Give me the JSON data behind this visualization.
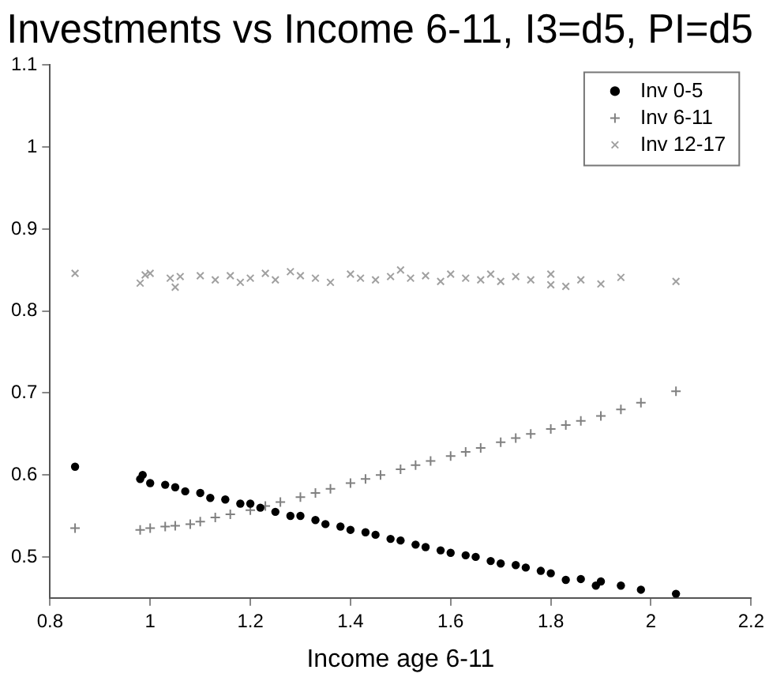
{
  "chart_data": {
    "type": "scatter",
    "title": "Investments vs Income 6-11, I3=d5, PI=d5",
    "xlabel": "Income age 6-11",
    "xlim": [
      0.8,
      2.2
    ],
    "xticks": [
      0.8,
      1,
      1.2,
      1.4,
      1.6,
      1.8,
      2,
      2.2
    ],
    "ylim": [
      0.45,
      1.1
    ],
    "yticks": [
      0.5,
      0.6,
      0.7,
      0.8,
      0.9,
      1,
      1.1
    ],
    "grid": false,
    "legend": "top right",
    "series": [
      {
        "name": "Inv 0-5",
        "color": "#000000",
        "marker": "circle",
        "x": [
          0.85,
          0.98,
          0.985,
          1.0,
          1.03,
          1.05,
          1.07,
          1.1,
          1.12,
          1.15,
          1.18,
          1.2,
          1.22,
          1.25,
          1.28,
          1.3,
          1.33,
          1.35,
          1.38,
          1.4,
          1.43,
          1.45,
          1.48,
          1.5,
          1.53,
          1.55,
          1.58,
          1.6,
          1.63,
          1.65,
          1.68,
          1.7,
          1.73,
          1.75,
          1.78,
          1.8,
          1.83,
          1.86,
          1.89,
          1.9,
          1.94,
          1.98,
          2.05
        ],
        "values": [
          0.61,
          0.595,
          0.6,
          0.59,
          0.588,
          0.585,
          0.58,
          0.578,
          0.572,
          0.57,
          0.565,
          0.565,
          0.56,
          0.555,
          0.55,
          0.55,
          0.545,
          0.54,
          0.537,
          0.533,
          0.53,
          0.527,
          0.522,
          0.52,
          0.515,
          0.512,
          0.508,
          0.505,
          0.502,
          0.5,
          0.495,
          0.492,
          0.49,
          0.487,
          0.483,
          0.48,
          0.472,
          0.473,
          0.465,
          0.47,
          0.465,
          0.46,
          0.455
        ]
      },
      {
        "name": "Inv 6-11",
        "color": "#808080",
        "marker": "cross",
        "x": [
          0.85,
          0.98,
          1.0,
          1.03,
          1.05,
          1.08,
          1.1,
          1.13,
          1.16,
          1.2,
          1.23,
          1.26,
          1.3,
          1.33,
          1.36,
          1.4,
          1.43,
          1.46,
          1.5,
          1.53,
          1.56,
          1.6,
          1.63,
          1.66,
          1.7,
          1.73,
          1.76,
          1.8,
          1.83,
          1.86,
          1.9,
          1.94,
          1.98,
          2.05
        ],
        "values": [
          0.535,
          0.533,
          0.535,
          0.537,
          0.538,
          0.54,
          0.543,
          0.548,
          0.552,
          0.557,
          0.562,
          0.567,
          0.573,
          0.578,
          0.583,
          0.59,
          0.595,
          0.6,
          0.607,
          0.612,
          0.617,
          0.623,
          0.628,
          0.633,
          0.64,
          0.645,
          0.65,
          0.656,
          0.661,
          0.666,
          0.672,
          0.68,
          0.688,
          0.702
        ]
      },
      {
        "name": "Inv 12-17",
        "color": "#a0a0a0",
        "marker": "x",
        "x": [
          0.85,
          0.98,
          0.99,
          1.0,
          1.04,
          1.05,
          1.06,
          1.1,
          1.13,
          1.16,
          1.18,
          1.2,
          1.23,
          1.25,
          1.28,
          1.3,
          1.33,
          1.36,
          1.4,
          1.42,
          1.45,
          1.48,
          1.5,
          1.52,
          1.55,
          1.58,
          1.6,
          1.63,
          1.66,
          1.68,
          1.7,
          1.73,
          1.76,
          1.8,
          1.8,
          1.83,
          1.86,
          1.9,
          1.94,
          2.05
        ],
        "values": [
          0.846,
          0.834,
          0.844,
          0.846,
          0.84,
          0.829,
          0.842,
          0.843,
          0.838,
          0.843,
          0.835,
          0.84,
          0.846,
          0.838,
          0.848,
          0.843,
          0.84,
          0.835,
          0.845,
          0.84,
          0.838,
          0.842,
          0.85,
          0.84,
          0.843,
          0.836,
          0.845,
          0.84,
          0.838,
          0.845,
          0.836,
          0.842,
          0.838,
          0.845,
          0.832,
          0.83,
          0.838,
          0.833,
          0.841,
          0.836
        ]
      }
    ]
  }
}
